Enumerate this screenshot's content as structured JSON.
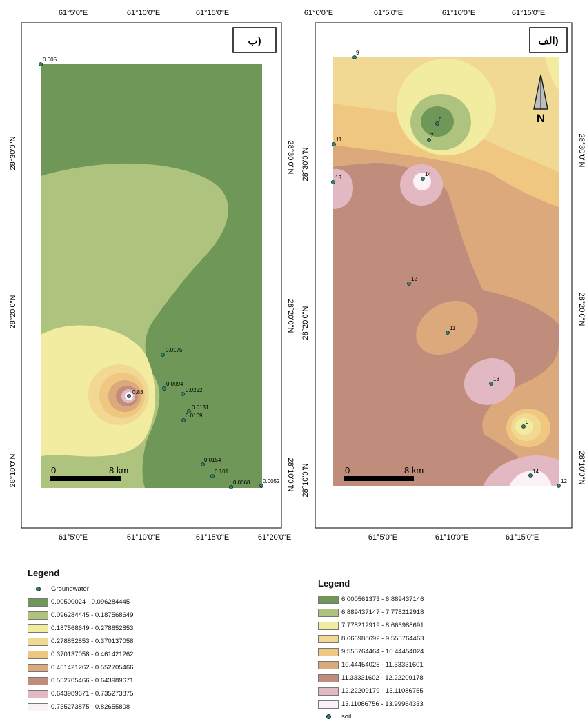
{
  "map_left": {
    "panel_label": "ب)",
    "top_ticks": [
      "61°5'0\"E",
      "61°10'0\"E",
      "61°15'0\"E"
    ],
    "bottom_ticks": [
      "61°5'0\"E",
      "61°10'0\"E",
      "61°15'0\"E",
      "61°20'0\"E"
    ],
    "left_ticks": [
      "28°30'0\"N",
      "28°20'0\"N",
      "28°10'0\"N"
    ],
    "right_ticks": [
      "28°30'0\"N",
      "28°20'0\"N",
      "28°10'0\"N"
    ],
    "scale_start": "0",
    "scale_end": "8 km",
    "wells": [
      {
        "label": "0.005"
      },
      {
        "label": "0.0175"
      },
      {
        "label": "0.0094"
      },
      {
        "label": "0.0222"
      },
      {
        "label": "0.0151"
      },
      {
        "label": "0.0109"
      },
      {
        "label": "0.83"
      },
      {
        "label": "0.0154"
      },
      {
        "label": "0.101"
      },
      {
        "label": "0.0068"
      },
      {
        "label": "0.0052"
      }
    ]
  },
  "map_right": {
    "panel_label": "الف)",
    "north_label": "N",
    "top_ticks": [
      "61°0'0\"E",
      "61°5'0\"E",
      "61°10'0\"E",
      "61°15'0\"E"
    ],
    "bottom_ticks": [
      "61°5'0\"E",
      "61°10'0\"E",
      "61°15'0\"E"
    ],
    "left_ticks": [
      "28°30'0\"N",
      "28°20'0\"N",
      "28°10'0\"N"
    ],
    "right_ticks": [
      "28°30'0\"N",
      "28°20'0\"N",
      "28°10'0\"N"
    ],
    "scale_start": "0",
    "scale_end": "8 km",
    "samples": [
      {
        "label": "9"
      },
      {
        "label": "6"
      },
      {
        "label": "7"
      },
      {
        "label": "11"
      },
      {
        "label": "13"
      },
      {
        "label": "14"
      },
      {
        "label": "12"
      },
      {
        "label": "11"
      },
      {
        "label": "13"
      },
      {
        "label": "9"
      },
      {
        "label": "14"
      },
      {
        "label": "12"
      }
    ]
  },
  "legend_left": {
    "title": "Legend",
    "point_label": "Groundwater",
    "classes": [
      {
        "label": "0.00500024 - 0.096284445",
        "color": "#6f9858"
      },
      {
        "label": "0.096284445 - 0.187568649",
        "color": "#aec47e"
      },
      {
        "label": "0.187568649 - 0.278852853",
        "color": "#f1ec9f"
      },
      {
        "label": "0.278852853 - 0.370137058",
        "color": "#f1d994"
      },
      {
        "label": "0.370137058 - 0.461421262",
        "color": "#f0c781"
      },
      {
        "label": "0.461421262 - 0.552705466",
        "color": "#dba97c"
      },
      {
        "label": "0.552705466 - 0.643989671",
        "color": "#c08d7c"
      },
      {
        "label": "0.643989671 - 0.735273875",
        "color": "#e2b9c3"
      },
      {
        "label": "0.735273875 - 0.82655808",
        "color": "#fdf1f8"
      }
    ]
  },
  "legend_right": {
    "title": "Legend",
    "point_label": "soil",
    "classes": [
      {
        "label": "6.000561373 - 6.889437146",
        "color": "#6f9858"
      },
      {
        "label": "6.889437147 - 7.778212918",
        "color": "#aec47e"
      },
      {
        "label": "7.778212919 - 8.666988691",
        "color": "#f1ec9f"
      },
      {
        "label": "8.666988692 - 9.555764463",
        "color": "#f1d994"
      },
      {
        "label": "9.555764464 - 10.44454024",
        "color": "#f0c781"
      },
      {
        "label": "10.44454025 - 11.33331601",
        "color": "#dba97c"
      },
      {
        "label": "11.33331602 - 12.22209178",
        "color": "#c08d7c"
      },
      {
        "label": "12.22209179 - 13.11086755",
        "color": "#e2b9c3"
      },
      {
        "label": "13.11086756 - 13.99964333",
        "color": "#fdf1f8"
      }
    ]
  }
}
